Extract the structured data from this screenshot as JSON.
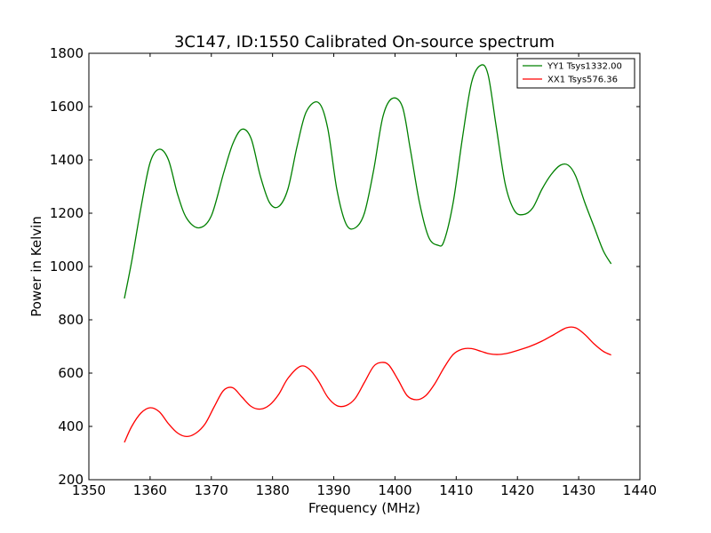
{
  "chart_data": {
    "type": "line",
    "title": "3C147, ID:1550 Calibrated On-source spectrum",
    "xlabel": "Frequency (MHz)",
    "ylabel": "Power in Kelvin",
    "xlim": [
      1350,
      1440
    ],
    "ylim": [
      200,
      1800
    ],
    "xticks": [
      1350,
      1360,
      1370,
      1380,
      1390,
      1400,
      1410,
      1420,
      1430,
      1440
    ],
    "yticks": [
      200,
      400,
      600,
      800,
      1000,
      1200,
      1400,
      1600,
      1800
    ],
    "grid": false,
    "legend_position": "top-right",
    "series": [
      {
        "name": "YY1 Tsys1332.00",
        "color": "#008000",
        "x": [
          1355.8,
          1357.0,
          1358.5,
          1360.0,
          1361.5,
          1363.0,
          1364.5,
          1366.0,
          1368.0,
          1370.0,
          1372.0,
          1373.5,
          1375.0,
          1376.5,
          1378.0,
          1379.5,
          1381.0,
          1382.5,
          1384.0,
          1385.5,
          1387.5,
          1389.0,
          1390.5,
          1392.0,
          1393.5,
          1395.0,
          1396.5,
          1398.0,
          1399.5,
          1401.2,
          1402.5,
          1404.0,
          1405.5,
          1407.0,
          1408.0,
          1409.5,
          1411.0,
          1412.5,
          1414.0,
          1415.2,
          1416.5,
          1418.0,
          1419.5,
          1421.0,
          1422.5,
          1424.0,
          1425.5,
          1427.0,
          1428.3,
          1429.5,
          1431.0,
          1432.5,
          1434.0,
          1435.3
        ],
        "values": [
          880,
          1020,
          1220,
          1390,
          1440,
          1400,
          1270,
          1180,
          1145,
          1190,
          1350,
          1460,
          1515,
          1480,
          1340,
          1240,
          1225,
          1290,
          1450,
          1580,
          1615,
          1520,
          1290,
          1160,
          1145,
          1200,
          1360,
          1560,
          1630,
          1600,
          1440,
          1240,
          1110,
          1080,
          1095,
          1240,
          1480,
          1690,
          1755,
          1720,
          1530,
          1310,
          1210,
          1195,
          1220,
          1290,
          1345,
          1380,
          1380,
          1340,
          1240,
          1150,
          1060,
          1010
        ]
      },
      {
        "name": "XX1 Tsys576.36",
        "color": "#ff0000",
        "x": [
          1355.8,
          1357.0,
          1358.5,
          1360.0,
          1361.5,
          1363.0,
          1364.5,
          1366.0,
          1367.5,
          1369.0,
          1370.5,
          1372.0,
          1373.5,
          1375.0,
          1376.5,
          1378.0,
          1379.5,
          1381.0,
          1382.5,
          1384.5,
          1386.0,
          1387.5,
          1389.0,
          1390.5,
          1392.0,
          1393.5,
          1395.0,
          1396.5,
          1397.8,
          1399.0,
          1400.5,
          1402.0,
          1403.5,
          1405.0,
          1406.5,
          1408.0,
          1409.5,
          1411.0,
          1412.5,
          1414.0,
          1415.5,
          1417.0,
          1418.5,
          1420.0,
          1422.0,
          1424.0,
          1426.0,
          1428.0,
          1429.5,
          1431.0,
          1432.5,
          1434.0,
          1435.3
        ],
        "values": [
          340,
          400,
          450,
          470,
          455,
          410,
          375,
          362,
          375,
          410,
          475,
          535,
          545,
          510,
          475,
          465,
          480,
          520,
          580,
          625,
          615,
          570,
          510,
          478,
          478,
          505,
          565,
          625,
          640,
          630,
          575,
          515,
          500,
          515,
          560,
          620,
          670,
          690,
          692,
          682,
          672,
          670,
          675,
          685,
          700,
          720,
          745,
          770,
          770,
          745,
          710,
          682,
          668
        ]
      }
    ]
  }
}
